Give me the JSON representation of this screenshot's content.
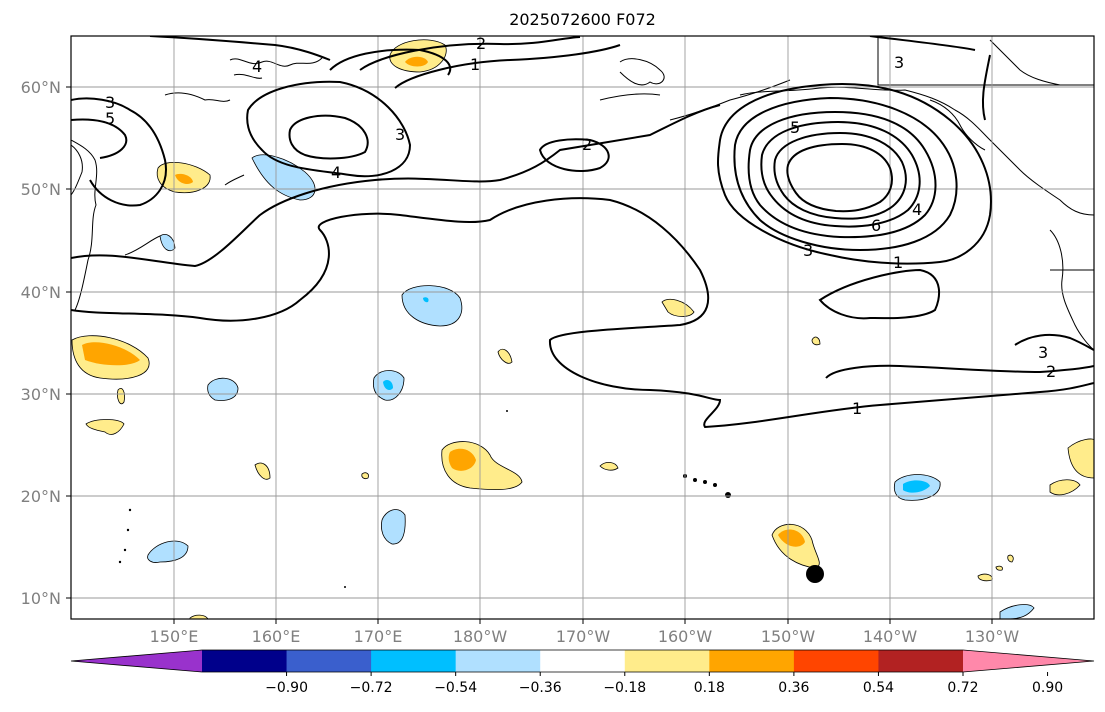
{
  "title": "2025072600 F072",
  "lat_labels": [
    "60°N",
    "50°N",
    "40°N",
    "30°N",
    "20°N",
    "10°N"
  ],
  "lon_labels": [
    "150°E",
    "160°E",
    "170°E",
    "180°W",
    "170°W",
    "160°W",
    "150°W",
    "140°W",
    "130°W"
  ],
  "contour_labels": [
    "1",
    "1",
    "1",
    "2",
    "2",
    "2",
    "3",
    "3",
    "3",
    "3",
    "3",
    "4",
    "4",
    "4",
    "5",
    "5",
    "6"
  ],
  "colorbar": {
    "ticks": [
      "−0.90",
      "−0.72",
      "−0.54",
      "−0.36",
      "−0.18",
      "0.18",
      "0.36",
      "0.54",
      "0.72",
      "0.90"
    ],
    "colors": [
      "#9932cc",
      "#00008b",
      "#3a5fcd",
      "#00bfff",
      "#b0e0ff",
      "#ffffff",
      "#ffec8b",
      "#ffa500",
      "#ff4500",
      "#b22222",
      "#ff88aa"
    ]
  },
  "marker": "storm-position-dot"
}
